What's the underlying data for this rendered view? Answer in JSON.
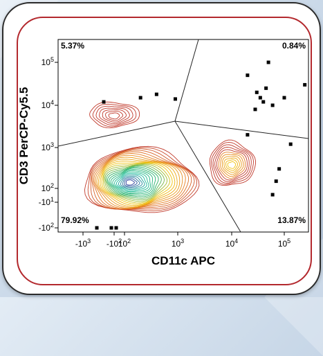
{
  "chart_data": {
    "type": "scatter",
    "subtype": "flow-cytometry-contour",
    "xlabel": "CD11c APC",
    "ylabel": "CD3 PerCP-Cy5.5",
    "x_scale": "biexponential",
    "y_scale": "biexponential",
    "xlim": [
      -1000,
      200000
    ],
    "ylim": [
      -100,
      300000
    ],
    "x_ticks": [
      {
        "label": "-10",
        "exp": "3",
        "value": -1000
      },
      {
        "label": "-10",
        "exp": "2",
        "value": -100
      },
      {
        "label": "10",
        "exp": "2",
        "value": 100
      },
      {
        "label": "10",
        "exp": "3",
        "value": 1000
      },
      {
        "label": "10",
        "exp": "4",
        "value": 10000
      },
      {
        "label": "10",
        "exp": "5",
        "value": 100000
      }
    ],
    "y_ticks": [
      {
        "label": "10",
        "exp": "5",
        "value": 100000
      },
      {
        "label": "10",
        "exp": "4",
        "value": 10000
      },
      {
        "label": "10",
        "exp": "3",
        "value": 1000
      },
      {
        "label": "10",
        "exp": "2",
        "value": 100
      },
      {
        "label": "-10",
        "exp": "1",
        "value": -10
      },
      {
        "label": "-10",
        "exp": "2",
        "value": -100
      }
    ],
    "quadrants": [
      {
        "position": "top-left",
        "percent": "5.37%"
      },
      {
        "position": "top-right",
        "percent": "0.84%"
      },
      {
        "position": "bottom-left",
        "percent": "79.92%"
      },
      {
        "position": "bottom-right",
        "percent": "13.87%"
      }
    ],
    "populations": [
      {
        "region": "bottom-left",
        "center_x": 200,
        "center_y": 150,
        "intensity": "very high"
      },
      {
        "region": "bottom-right",
        "center_x": 10000,
        "center_y": 400,
        "intensity": "medium"
      },
      {
        "region": "top-left",
        "center_x": -100,
        "center_y": 6000,
        "intensity": "low"
      }
    ],
    "events": [
      [
        -400,
        12000
      ],
      [
        200,
        15000
      ],
      [
        400,
        18000
      ],
      [
        900,
        14000
      ],
      [
        20000,
        50000
      ],
      [
        30000,
        20000
      ],
      [
        50000,
        100000
      ],
      [
        35000,
        15000
      ],
      [
        45000,
        25000
      ],
      [
        40000,
        12000
      ],
      [
        60000,
        10000
      ],
      [
        100000,
        15000
      ],
      [
        180000,
        30000
      ],
      [
        28000,
        8000
      ],
      [
        20000,
        2000
      ],
      [
        120000,
        1200
      ],
      [
        80000,
        300
      ],
      [
        70000,
        150
      ],
      [
        60000,
        50
      ],
      [
        -180,
        -100
      ],
      [
        -600,
        -100
      ],
      [
        -60,
        -100
      ]
    ],
    "grid": false,
    "legend": "none"
  },
  "colors": {
    "card_border": "#2b2b2b",
    "inner_border": "#b3282d",
    "contour_outer": "#c0392b",
    "contour_mid": "#f1c40f",
    "contour_green": "#27ae60",
    "contour_inner": "#2c3e9c",
    "gate_line": "#222222",
    "dot": "#000000"
  }
}
